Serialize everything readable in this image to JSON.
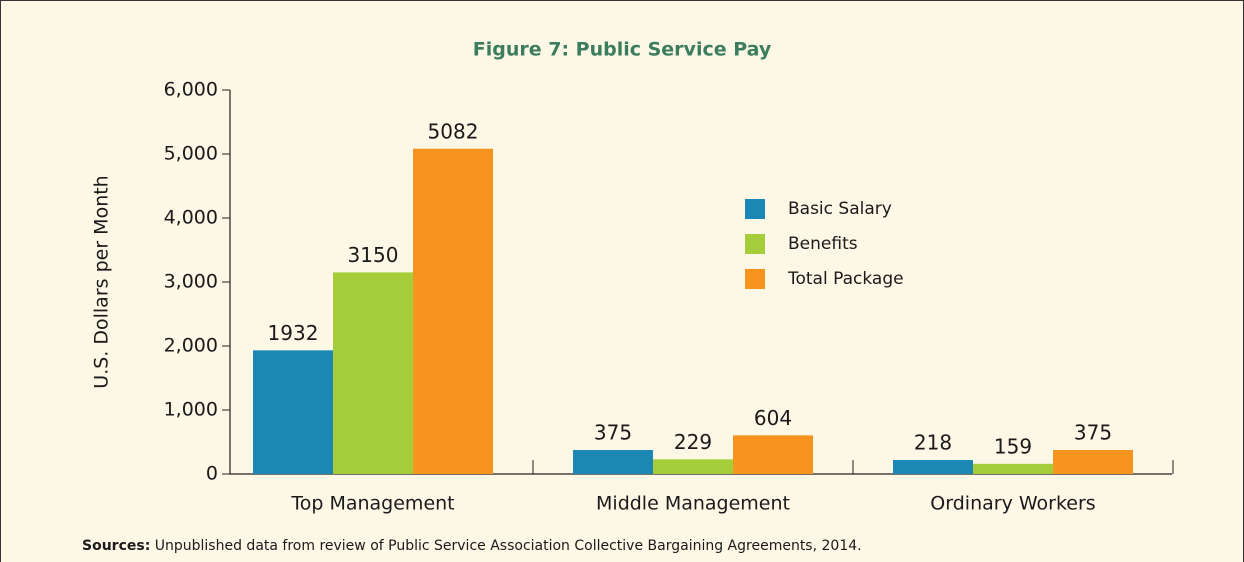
{
  "chart_data": {
    "type": "bar",
    "title": "Figure 7: Public Service Pay",
    "y_label": "U.S. Dollars per Month",
    "categories": [
      "Top Management",
      "Middle Management",
      "Ordinary Workers"
    ],
    "series": [
      {
        "name": "Basic Salary",
        "color": "#1a87b5",
        "values": [
          1932,
          375,
          218
        ]
      },
      {
        "name": "Benefits",
        "color": "#a5cd39",
        "values": [
          3150,
          229,
          159
        ]
      },
      {
        "name": "Total Package",
        "color": "#f7941d",
        "values": [
          5082,
          604,
          375
        ]
      }
    ],
    "ylim": [
      0,
      6000
    ],
    "yticks": [
      0,
      {
        "value": 1000,
        "label": "1,000"
      },
      {
        "value": 2000,
        "label": "2,000"
      },
      {
        "value": 3000,
        "label": "3,000"
      },
      {
        "value": 4000,
        "label": "4,000"
      },
      {
        "value": 5000,
        "label": "5,000"
      },
      {
        "value": 6000,
        "label": "6,000"
      }
    ],
    "legend": "right",
    "source_label": "Sources:",
    "source_text": "Unpublished data from review of Public Service Association Collective Bargaining Agreements, 2014."
  }
}
